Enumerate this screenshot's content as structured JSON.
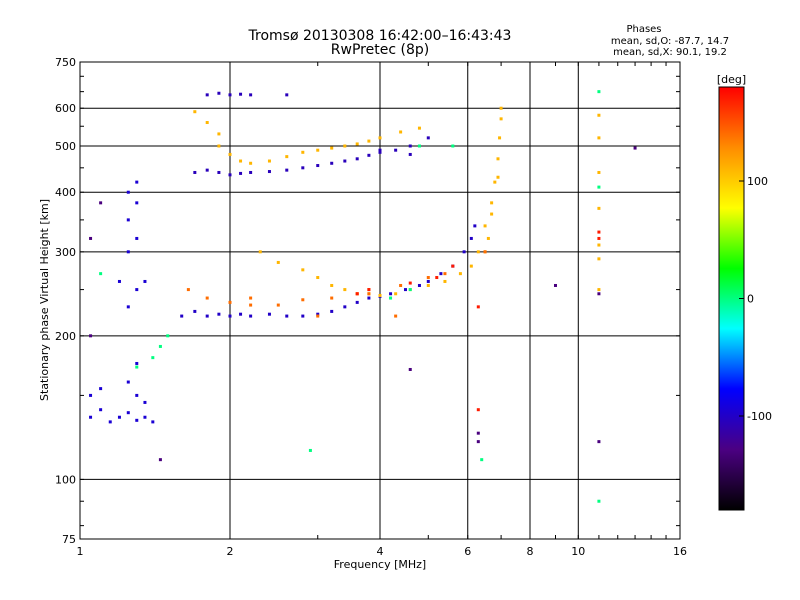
{
  "chart_data": {
    "type": "scatter",
    "title": "Tromsø 20130308 16:42:00–16:43:43",
    "subtitle": "RwPretec (8p)",
    "xlabel": "Frequency [MHz]",
    "ylabel": "Stationary phase Virtual Height [km]",
    "x_scale": "log",
    "y_scale": "log",
    "xlim": [
      1,
      16
    ],
    "ylim": [
      75,
      750
    ],
    "x_ticks": [
      1,
      2,
      4,
      6,
      8,
      10,
      16
    ],
    "x_gridlines": [
      2,
      4,
      6,
      8,
      10
    ],
    "y_ticks": [
      75,
      100,
      200,
      300,
      400,
      500,
      600,
      750
    ],
    "y_gridlines": [
      100,
      200,
      300,
      400,
      500,
      600
    ],
    "phase_stats": {
      "heading": "Phases",
      "o_line": "mean, sd,O: -87.7, 14.7",
      "x_line": "mean, sd,X: 90.1, 19.2"
    },
    "colorbar": {
      "label": "[deg]",
      "range": [
        -180,
        180
      ],
      "ticks": [
        100,
        0,
        -100
      ],
      "colors": [
        "#000000",
        "#4b0082",
        "#0000ff",
        "#00ffff",
        "#00ff00",
        "#ffff00",
        "#ff8c00",
        "#ff0000"
      ]
    },
    "legend": "none",
    "series": [
      {
        "phase": -95,
        "points": [
          [
            1.05,
            135
          ],
          [
            1.1,
            140
          ],
          [
            1.15,
            132
          ],
          [
            1.2,
            135
          ],
          [
            1.25,
            138
          ],
          [
            1.3,
            133
          ],
          [
            1.35,
            135
          ],
          [
            1.4,
            132
          ],
          [
            1.05,
            150
          ],
          [
            1.1,
            155
          ],
          [
            1.25,
            160
          ],
          [
            1.3,
            150
          ],
          [
            1.35,
            145
          ],
          [
            1.3,
            175
          ],
          [
            1.25,
            230
          ],
          [
            1.3,
            250
          ],
          [
            1.35,
            260
          ],
          [
            1.2,
            260
          ],
          [
            1.25,
            300
          ],
          [
            1.3,
            320
          ],
          [
            1.25,
            350
          ],
          [
            1.3,
            380
          ],
          [
            1.3,
            420
          ],
          [
            1.25,
            400
          ]
        ]
      },
      {
        "phase": -100,
        "points": [
          [
            1.6,
            220
          ],
          [
            1.7,
            225
          ],
          [
            1.8,
            220
          ],
          [
            1.9,
            222
          ],
          [
            2.0,
            220
          ],
          [
            2.1,
            222
          ],
          [
            2.2,
            220
          ],
          [
            2.4,
            222
          ],
          [
            2.6,
            220
          ],
          [
            2.8,
            220
          ],
          [
            3.0,
            222
          ],
          [
            3.2,
            225
          ],
          [
            3.4,
            230
          ],
          [
            3.6,
            235
          ],
          [
            3.8,
            240
          ],
          [
            4.0,
            242
          ],
          [
            4.2,
            245
          ],
          [
            4.5,
            250
          ],
          [
            4.8,
            255
          ],
          [
            5.0,
            260
          ],
          [
            5.3,
            270
          ],
          [
            5.6,
            280
          ],
          [
            5.9,
            300
          ],
          [
            6.1,
            320
          ],
          [
            6.2,
            340
          ]
        ]
      },
      {
        "phase": -105,
        "points": [
          [
            1.7,
            440
          ],
          [
            1.8,
            445
          ],
          [
            1.9,
            440
          ],
          [
            2.0,
            435
          ],
          [
            2.1,
            438
          ],
          [
            2.2,
            440
          ],
          [
            2.4,
            442
          ],
          [
            2.6,
            445
          ],
          [
            2.8,
            450
          ],
          [
            3.0,
            455
          ],
          [
            3.2,
            460
          ],
          [
            3.4,
            465
          ],
          [
            3.6,
            470
          ],
          [
            3.8,
            478
          ],
          [
            4.0,
            485
          ],
          [
            4.3,
            490
          ],
          [
            4.6,
            500
          ],
          [
            5.0,
            520
          ],
          [
            1.8,
            640
          ],
          [
            1.9,
            645
          ],
          [
            2.0,
            640
          ],
          [
            2.1,
            642
          ],
          [
            2.2,
            640
          ],
          [
            2.6,
            640
          ],
          [
            4.0,
            490
          ],
          [
            4.6,
            480
          ]
        ]
      },
      {
        "phase": 110,
        "points": [
          [
            2.3,
            300
          ],
          [
            2.5,
            285
          ],
          [
            2.8,
            275
          ],
          [
            3.0,
            265
          ],
          [
            3.2,
            255
          ],
          [
            3.4,
            250
          ],
          [
            3.6,
            245
          ],
          [
            3.8,
            245
          ],
          [
            4.0,
            243
          ],
          [
            4.3,
            245
          ],
          [
            4.6,
            250
          ],
          [
            5.0,
            255
          ],
          [
            5.4,
            260
          ],
          [
            5.8,
            270
          ],
          [
            6.1,
            280
          ],
          [
            6.3,
            300
          ],
          [
            6.5,
            340
          ],
          [
            6.7,
            380
          ],
          [
            6.8,
            420
          ],
          [
            6.9,
            470
          ],
          [
            6.95,
            520
          ],
          [
            7.0,
            570
          ],
          [
            7.0,
            600
          ],
          [
            6.9,
            430
          ],
          [
            6.7,
            360
          ],
          [
            6.6,
            320
          ],
          [
            6.5,
            300
          ],
          [
            1.7,
            590
          ],
          [
            1.8,
            560
          ],
          [
            1.9,
            530
          ],
          [
            1.9,
            500
          ],
          [
            2.0,
            480
          ],
          [
            2.1,
            465
          ],
          [
            2.2,
            460
          ],
          [
            2.4,
            465
          ],
          [
            2.6,
            475
          ],
          [
            2.8,
            485
          ],
          [
            3.0,
            490
          ],
          [
            3.2,
            495
          ],
          [
            3.4,
            500
          ],
          [
            3.6,
            505
          ],
          [
            3.8,
            512
          ],
          [
            4.0,
            520
          ],
          [
            4.4,
            535
          ],
          [
            4.8,
            545
          ],
          [
            11.0,
            580
          ],
          [
            11.0,
            520
          ],
          [
            11.0,
            440
          ],
          [
            11.0,
            370
          ],
          [
            11.0,
            310
          ],
          [
            11.0,
            290
          ],
          [
            11.0,
            250
          ]
        ]
      },
      {
        "phase": 140,
        "points": [
          [
            1.65,
            250
          ],
          [
            1.8,
            240
          ],
          [
            2.0,
            235
          ],
          [
            2.2,
            232
          ],
          [
            2.5,
            232
          ],
          [
            2.8,
            238
          ],
          [
            3.2,
            240
          ],
          [
            3.6,
            245
          ],
          [
            3.8,
            250
          ],
          [
            4.4,
            255
          ],
          [
            5.0,
            265
          ],
          [
            5.4,
            270
          ],
          [
            4.3,
            220
          ],
          [
            3.0,
            220
          ],
          [
            2.2,
            240
          ],
          [
            3.8,
            245
          ],
          [
            6.5,
            300
          ]
        ]
      },
      {
        "phase": 170,
        "points": [
          [
            3.6,
            245
          ],
          [
            3.8,
            250
          ],
          [
            4.6,
            258
          ],
          [
            5.2,
            265
          ],
          [
            5.6,
            280
          ],
          [
            11.0,
            330
          ],
          [
            11.0,
            320
          ],
          [
            6.3,
            140
          ],
          [
            6.3,
            230
          ]
        ]
      },
      {
        "phase": 0,
        "points": [
          [
            1.5,
            200
          ],
          [
            1.45,
            190
          ],
          [
            1.4,
            180
          ],
          [
            1.3,
            172
          ],
          [
            4.2,
            240
          ],
          [
            4.6,
            250
          ],
          [
            6.4,
            110
          ],
          [
            11.0,
            90
          ],
          [
            11.0,
            410
          ],
          [
            11.0,
            650
          ],
          [
            2.9,
            115
          ],
          [
            1.1,
            270
          ],
          [
            5.6,
            500
          ],
          [
            4.8,
            500
          ]
        ]
      },
      {
        "phase": -130,
        "points": [
          [
            1.45,
            110
          ],
          [
            6.3,
            120
          ],
          [
            6.3,
            125
          ],
          [
            11.0,
            120
          ],
          [
            11.0,
            245
          ],
          [
            13.0,
            495
          ],
          [
            9.0,
            255
          ],
          [
            4.6,
            170
          ],
          [
            1.1,
            380
          ],
          [
            1.05,
            320
          ],
          [
            1.05,
            200
          ]
        ]
      }
    ]
  }
}
